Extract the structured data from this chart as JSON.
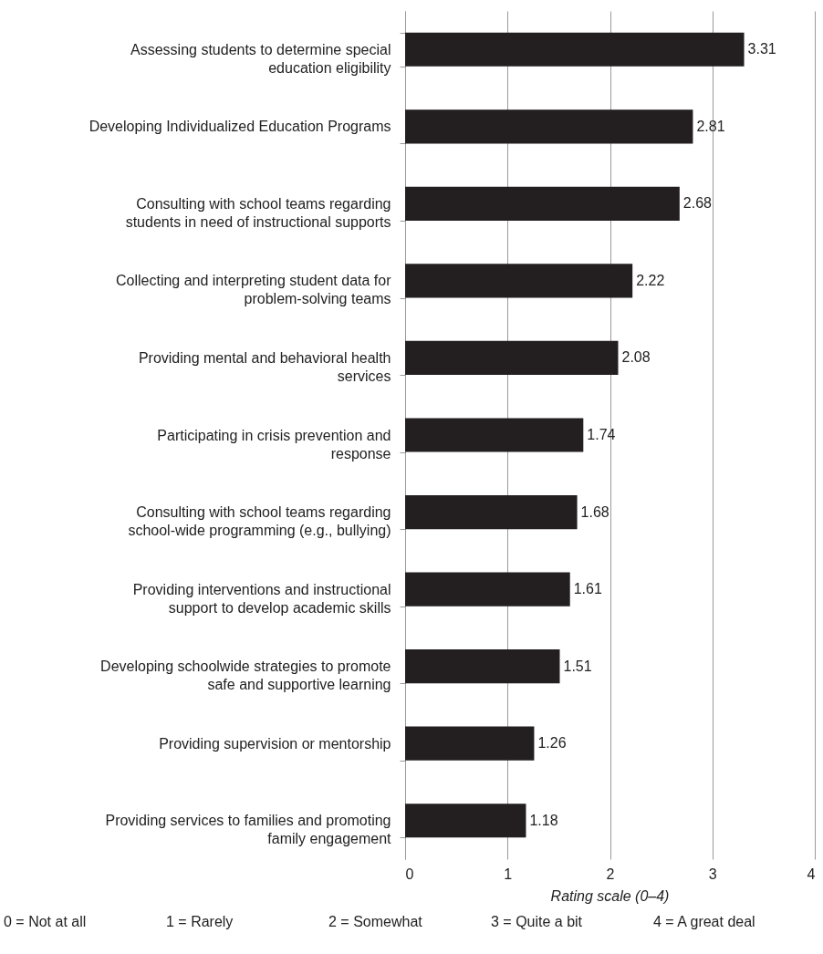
{
  "chart_data": {
    "type": "bar",
    "orientation": "horizontal",
    "categories": [
      "Assessing students to determine special education eligibility",
      "Developing Individualized Education Programs",
      "Consulting with school teams regarding students in need of instructional supports",
      "Collecting and interpreting student data for problem-solving teams",
      "Providing mental and behavioral health services",
      "Participating in crisis prevention and response",
      "Consulting with school teams regarding school-wide programming (e.g., bullying)",
      "Providing interventions and instructional support to develop academic skills",
      "Developing schoolwide strategies to promote safe and supportive learning",
      "Providing supervision or mentorship",
      "Providing services to families and promoting family engagement"
    ],
    "values": [
      3.31,
      2.81,
      2.68,
      2.22,
      2.08,
      1.74,
      1.68,
      1.61,
      1.51,
      1.26,
      1.18
    ],
    "color": "#231f20",
    "data_labels": true,
    "xlim": [
      0,
      4
    ],
    "xticks": [
      0,
      1,
      2,
      3,
      4
    ],
    "grid": "x",
    "xlabel": "Rating scale (0–4)",
    "annotations": [
      "0 = Not at all",
      "1 = Rarely",
      "2 = Somewhat",
      "3 = Quite a bit",
      "4 = A great deal"
    ]
  }
}
